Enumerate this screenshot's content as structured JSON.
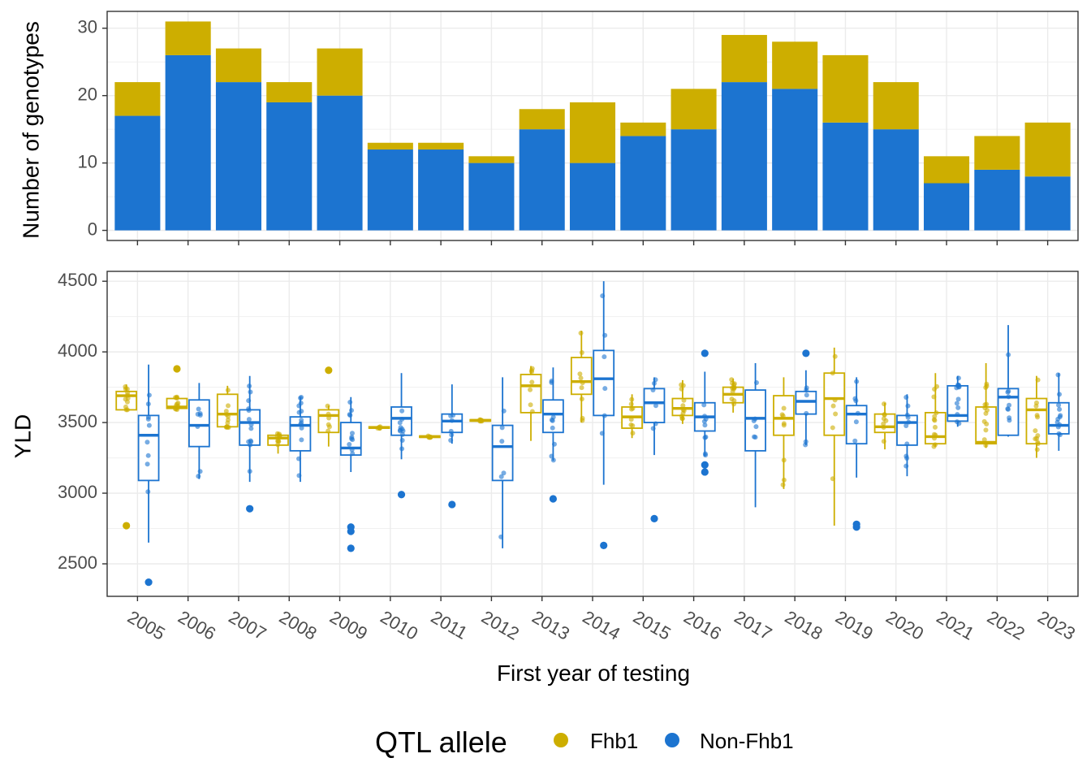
{
  "colors": {
    "fhb1": "#CDAE00",
    "nonfhb1": "#1C74D0"
  },
  "chart_data": [
    {
      "type": "bar",
      "stacked": true,
      "categories": [
        "2005",
        "2006",
        "2007",
        "2008",
        "2009",
        "2010",
        "2011",
        "2012",
        "2013",
        "2014",
        "2015",
        "2016",
        "2017",
        "2018",
        "2019",
        "2020",
        "2021",
        "2022",
        "2023"
      ],
      "series": [
        {
          "name": "Non-Fhb1",
          "values": [
            17,
            26,
            22,
            19,
            20,
            12,
            12,
            10,
            15,
            10,
            14,
            15,
            22,
            21,
            16,
            15,
            7,
            9,
            8
          ]
        },
        {
          "name": "Fhb1",
          "values": [
            5,
            5,
            5,
            3,
            7,
            1,
            1,
            1,
            3,
            9,
            2,
            6,
            7,
            7,
            10,
            7,
            4,
            5,
            8
          ]
        }
      ],
      "ylabel": "Number of genotypes",
      "yticks": [
        0,
        10,
        20,
        30
      ],
      "ylim": [
        -1.5,
        32.5
      ]
    },
    {
      "type": "box",
      "categories": [
        "2005",
        "2006",
        "2007",
        "2008",
        "2009",
        "2010",
        "2011",
        "2012",
        "2013",
        "2014",
        "2015",
        "2016",
        "2017",
        "2018",
        "2019",
        "2020",
        "2021",
        "2022",
        "2023"
      ],
      "xlabel": "First year of testing",
      "ylabel": "YLD",
      "yticks": [
        2500,
        3000,
        3500,
        4000,
        4500
      ],
      "ylim": [
        2270,
        4570
      ],
      "fhb1": [
        {
          "q1": 3590,
          "median": 3690,
          "q3": 3720,
          "wlo": 3590,
          "whi": 3770,
          "outliers": [
            2770
          ]
        },
        {
          "q1": 3600,
          "median": 3610,
          "q3": 3670,
          "wlo": 3590,
          "whi": 3680,
          "outliers": [
            3880
          ]
        },
        {
          "q1": 3470,
          "median": 3560,
          "q3": 3700,
          "wlo": 3460,
          "whi": 3760,
          "outliers": []
        },
        {
          "q1": 3340,
          "median": 3390,
          "q3": 3410,
          "wlo": 3280,
          "whi": 3430,
          "outliers": []
        },
        {
          "q1": 3430,
          "median": 3550,
          "q3": 3590,
          "wlo": 3330,
          "whi": 3620,
          "outliers": [
            3870
          ]
        },
        {
          "q1": 3460,
          "median": 3465,
          "q3": 3470,
          "wlo": 3460,
          "whi": 3470,
          "outliers": []
        },
        {
          "q1": 3395,
          "median": 3400,
          "q3": 3405,
          "wlo": 3395,
          "whi": 3405,
          "outliers": []
        },
        {
          "q1": 3510,
          "median": 3515,
          "q3": 3520,
          "wlo": 3510,
          "whi": 3520,
          "outliers": []
        },
        {
          "q1": 3570,
          "median": 3760,
          "q3": 3840,
          "wlo": 3370,
          "whi": 3900,
          "outliers": []
        },
        {
          "q1": 3700,
          "median": 3790,
          "q3": 3960,
          "wlo": 3500,
          "whi": 4150,
          "outliers": []
        },
        {
          "q1": 3460,
          "median": 3540,
          "q3": 3610,
          "wlo": 3390,
          "whi": 3700,
          "outliers": []
        },
        {
          "q1": 3550,
          "median": 3600,
          "q3": 3670,
          "wlo": 3490,
          "whi": 3800,
          "outliers": []
        },
        {
          "q1": 3640,
          "median": 3700,
          "q3": 3750,
          "wlo": 3570,
          "whi": 3810,
          "outliers": []
        },
        {
          "q1": 3410,
          "median": 3530,
          "q3": 3690,
          "wlo": 3030,
          "whi": 3820,
          "outliers": []
        },
        {
          "q1": 3410,
          "median": 3670,
          "q3": 3850,
          "wlo": 2770,
          "whi": 4030,
          "outliers": []
        },
        {
          "q1": 3430,
          "median": 3470,
          "q3": 3560,
          "wlo": 3310,
          "whi": 3640,
          "outliers": []
        },
        {
          "q1": 3350,
          "median": 3400,
          "q3": 3570,
          "wlo": 3330,
          "whi": 3850,
          "outliers": []
        },
        {
          "q1": 3350,
          "median": 3360,
          "q3": 3610,
          "wlo": 3320,
          "whi": 3920,
          "outliers": []
        },
        {
          "q1": 3350,
          "median": 3590,
          "q3": 3670,
          "wlo": 3250,
          "whi": 3830,
          "outliers": []
        }
      ],
      "nonfhb1": [
        {
          "q1": 3090,
          "median": 3410,
          "q3": 3550,
          "wlo": 2650,
          "whi": 3910,
          "outliers": [
            2370
          ]
        },
        {
          "q1": 3330,
          "median": 3480,
          "q3": 3660,
          "wlo": 3100,
          "whi": 3780,
          "outliers": []
        },
        {
          "q1": 3340,
          "median": 3500,
          "q3": 3590,
          "wlo": 3080,
          "whi": 3830,
          "outliers": [
            2890
          ]
        },
        {
          "q1": 3300,
          "median": 3480,
          "q3": 3540,
          "wlo": 3080,
          "whi": 3680,
          "outliers": []
        },
        {
          "q1": 3270,
          "median": 3320,
          "q3": 3500,
          "wlo": 3150,
          "whi": 3680,
          "outliers": [
            2760,
            2730,
            2610
          ]
        },
        {
          "q1": 3410,
          "median": 3530,
          "q3": 3610,
          "wlo": 3240,
          "whi": 3850,
          "outliers": [
            2990
          ]
        },
        {
          "q1": 3430,
          "median": 3510,
          "q3": 3560,
          "wlo": 3350,
          "whi": 3770,
          "outliers": [
            2920
          ]
        },
        {
          "q1": 3090,
          "median": 3330,
          "q3": 3480,
          "wlo": 2610,
          "whi": 3820,
          "outliers": []
        },
        {
          "q1": 3430,
          "median": 3560,
          "q3": 3660,
          "wlo": 3230,
          "whi": 3890,
          "outliers": [
            2960
          ]
        },
        {
          "q1": 3550,
          "median": 3810,
          "q3": 4010,
          "wlo": 3060,
          "whi": 4500,
          "outliers": [
            2630
          ]
        },
        {
          "q1": 3500,
          "median": 3640,
          "q3": 3740,
          "wlo": 3270,
          "whi": 3820,
          "outliers": [
            2820
          ]
        },
        {
          "q1": 3440,
          "median": 3540,
          "q3": 3640,
          "wlo": 3260,
          "whi": 3860,
          "outliers": [
            3990,
            3200,
            3150
          ]
        },
        {
          "q1": 3300,
          "median": 3530,
          "q3": 3730,
          "wlo": 2900,
          "whi": 3920,
          "outliers": []
        },
        {
          "q1": 3560,
          "median": 3650,
          "q3": 3720,
          "wlo": 3340,
          "whi": 3870,
          "outliers": [
            3990
          ]
        },
        {
          "q1": 3350,
          "median": 3560,
          "q3": 3620,
          "wlo": 3110,
          "whi": 3820,
          "outliers": [
            2780,
            2760
          ]
        },
        {
          "q1": 3340,
          "median": 3500,
          "q3": 3550,
          "wlo": 3120,
          "whi": 3700,
          "outliers": []
        },
        {
          "q1": 3510,
          "median": 3550,
          "q3": 3760,
          "wlo": 3470,
          "whi": 3830,
          "outliers": []
        },
        {
          "q1": 3410,
          "median": 3680,
          "q3": 3740,
          "wlo": 3400,
          "whi": 4190,
          "outliers": []
        },
        {
          "q1": 3420,
          "median": 3480,
          "q3": 3640,
          "wlo": 3300,
          "whi": 3850,
          "outliers": []
        }
      ]
    }
  ],
  "legend": {
    "title": "QTL allele",
    "items": [
      {
        "label": "Fhb1",
        "key": "fhb1"
      },
      {
        "label": "Non-Fhb1",
        "key": "nonfhb1"
      }
    ]
  }
}
